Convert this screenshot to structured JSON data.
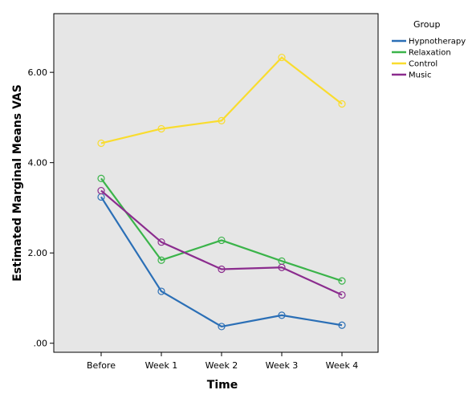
{
  "chart_data": {
    "type": "line",
    "xlabel": "Time",
    "ylabel": "Estimated Marginal Means VAS",
    "categories": [
      "Before",
      "Week 1",
      "Week 2",
      "Week 3",
      "Week 4"
    ],
    "ylim": [
      -0.2,
      7.3
    ],
    "yticks": [
      0,
      2,
      4,
      6
    ],
    "ytick_labels": [
      ".00",
      "2.00",
      "4.00",
      "6.00"
    ],
    "grid": false,
    "plot_background": "#E6E6E6",
    "legend_title": "Group",
    "legend_position": "right",
    "series": [
      {
        "name": "Hypnotherapy",
        "color": "#2B6FB6",
        "values": [
          3.24,
          1.15,
          0.37,
          0.62,
          0.4
        ]
      },
      {
        "name": "Relaxation",
        "color": "#3BB44A",
        "values": [
          3.65,
          1.84,
          2.28,
          1.82,
          1.38
        ]
      },
      {
        "name": "Control",
        "color": "#F9DC2E",
        "values": [
          4.43,
          4.75,
          4.93,
          6.33,
          5.3
        ]
      },
      {
        "name": "Music",
        "color": "#8B2C8E",
        "values": [
          3.38,
          2.24,
          1.64,
          1.68,
          1.07
        ]
      }
    ]
  }
}
